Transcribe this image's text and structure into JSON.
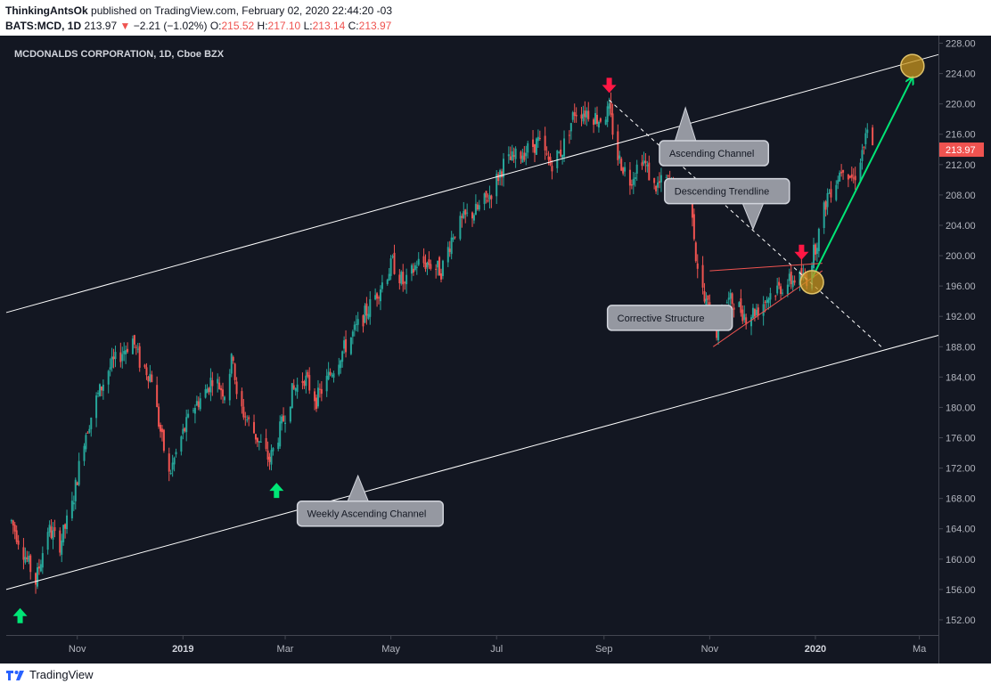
{
  "header": {
    "author": "ThinkingAntsOk",
    "published_text": "published on TradingView.com, February 02, 2020 22:44:20 -03",
    "symbol": "BATS:MCD, 1D",
    "last": "213.97",
    "change_arrow": "▼",
    "change": "−2.21 (−1.02%)",
    "o_label": "O:",
    "o_value": "215.52",
    "h_label": "H:",
    "h_value": "217.10",
    "l_label": "L:",
    "l_value": "213.14",
    "c_label": "C:",
    "c_value": "213.97"
  },
  "chart_data": {
    "type": "candlestick",
    "title": "MCDONALDS CORPORATION, 1D, Cboe BZX",
    "ylim": [
      150,
      229
    ],
    "y_ticks": [
      "228.00",
      "224.00",
      "220.00",
      "216.00",
      "212.00",
      "208.00",
      "204.00",
      "200.00",
      "196.00",
      "192.00",
      "188.00",
      "184.00",
      "180.00",
      "176.00",
      "172.00",
      "168.00",
      "164.00",
      "160.00",
      "156.00",
      "152.00"
    ],
    "x_ticks": [
      {
        "label": "Nov",
        "date": "2018-11-01"
      },
      {
        "label": "2019",
        "date": "2019-01-01",
        "bold": true
      },
      {
        "label": "Mar",
        "date": "2019-03-01"
      },
      {
        "label": "May",
        "date": "2019-05-01"
      },
      {
        "label": "Jul",
        "date": "2019-07-01"
      },
      {
        "label": "Sep",
        "date": "2019-09-01"
      },
      {
        "label": "Nov",
        "date": "2019-11-01"
      },
      {
        "label": "2020",
        "date": "2020-01-01",
        "bold": true
      },
      {
        "label": "Ma",
        "date": "2020-03-01"
      }
    ],
    "price_path": [
      [
        "2018-09-24",
        165
      ],
      [
        "2018-10-08",
        157
      ],
      [
        "2018-10-15",
        164
      ],
      [
        "2018-10-22",
        162
      ],
      [
        "2018-10-29",
        167
      ],
      [
        "2018-11-05",
        176
      ],
      [
        "2018-11-12",
        181
      ],
      [
        "2018-11-19",
        185
      ],
      [
        "2018-11-26",
        187
      ],
      [
        "2018-12-03",
        189
      ],
      [
        "2018-12-07",
        186
      ],
      [
        "2018-12-14",
        184
      ],
      [
        "2018-12-18",
        178
      ],
      [
        "2018-12-24",
        171
      ],
      [
        "2018-12-31",
        176
      ],
      [
        "2019-01-07",
        180
      ],
      [
        "2019-01-14",
        182
      ],
      [
        "2019-01-18",
        184
      ],
      [
        "2019-01-25",
        182
      ],
      [
        "2019-01-30",
        187
      ],
      [
        "2019-02-01",
        181
      ],
      [
        "2019-02-08",
        178
      ],
      [
        "2019-02-15",
        175
      ],
      [
        "2019-02-20",
        173
      ],
      [
        "2019-02-26",
        177
      ],
      [
        "2019-03-05",
        182
      ],
      [
        "2019-03-12",
        184
      ],
      [
        "2019-03-19",
        181
      ],
      [
        "2019-03-26",
        184
      ],
      [
        "2019-04-02",
        187
      ],
      [
        "2019-04-10",
        190
      ],
      [
        "2019-04-18",
        193
      ],
      [
        "2019-04-25",
        196
      ],
      [
        "2019-05-02",
        199
      ],
      [
        "2019-05-09",
        196
      ],
      [
        "2019-05-16",
        199
      ],
      [
        "2019-05-23",
        199
      ],
      [
        "2019-05-30",
        198
      ],
      [
        "2019-06-06",
        203
      ],
      [
        "2019-06-13",
        205
      ],
      [
        "2019-06-20",
        206
      ],
      [
        "2019-06-27",
        208
      ],
      [
        "2019-07-05",
        212
      ],
      [
        "2019-07-12",
        213
      ],
      [
        "2019-07-19",
        214
      ],
      [
        "2019-07-25",
        215
      ],
      [
        "2019-08-01",
        212
      ],
      [
        "2019-08-08",
        214
      ],
      [
        "2019-08-15",
        219
      ],
      [
        "2019-08-22",
        219
      ],
      [
        "2019-08-29",
        218
      ],
      [
        "2019-09-04",
        219
      ],
      [
        "2019-09-09",
        213
      ],
      [
        "2019-09-16",
        210
      ],
      [
        "2019-09-23",
        213
      ],
      [
        "2019-09-30",
        209
      ],
      [
        "2019-10-07",
        210
      ],
      [
        "2019-10-14",
        208
      ],
      [
        "2019-10-21",
        209
      ],
      [
        "2019-10-24",
        200
      ],
      [
        "2019-10-29",
        194
      ],
      [
        "2019-11-01",
        193
      ],
      [
        "2019-11-05",
        190
      ],
      [
        "2019-11-08",
        194
      ],
      [
        "2019-11-15",
        194
      ],
      [
        "2019-11-22",
        192
      ],
      [
        "2019-11-29",
        193
      ],
      [
        "2019-12-06",
        195
      ],
      [
        "2019-12-13",
        196
      ],
      [
        "2019-12-20",
        197
      ],
      [
        "2019-12-27",
        197
      ],
      [
        "2020-01-03",
        203
      ],
      [
        "2020-01-08",
        208
      ],
      [
        "2020-01-13",
        210
      ],
      [
        "2020-01-17",
        212
      ],
      [
        "2020-01-23",
        210
      ],
      [
        "2020-01-27",
        213
      ],
      [
        "2020-01-31",
        216
      ],
      [
        "2020-02-03",
        214
      ]
    ],
    "last_price": "213.97",
    "annotations": [
      {
        "type": "line",
        "name": "weekly-channel-upper",
        "from": [
          "2018-09-21",
          192.5
        ],
        "to": [
          "2020-03-12",
          226.5
        ],
        "color": "#ffffff"
      },
      {
        "type": "line",
        "name": "weekly-channel-lower",
        "from": [
          "2018-09-21",
          156
        ],
        "to": [
          "2020-03-12",
          189.5
        ],
        "color": "#ffffff"
      },
      {
        "type": "line",
        "name": "descending-trendline",
        "from": [
          "2019-09-04",
          220.5
        ],
        "to": [
          "2020-02-08",
          188
        ],
        "color": "#ffffff",
        "dashed": true
      },
      {
        "type": "line",
        "name": "corrective-top",
        "from": [
          "2019-11-01",
          198
        ],
        "to": [
          "2020-01-05",
          199
        ],
        "color": "#ef5350"
      },
      {
        "type": "line",
        "name": "corrective-bottom",
        "from": [
          "2019-11-03",
          188
        ],
        "to": [
          "2020-01-05",
          198
        ],
        "color": "#ef5350"
      },
      {
        "type": "arrow",
        "name": "target-arrow",
        "from": [
          "2019-12-30",
          197
        ],
        "to": [
          "2020-02-26",
          223.5
        ],
        "color": "#4caf50"
      }
    ],
    "callouts": [
      {
        "text": "Ascending Channel",
        "anchor": [
          "2019-10-18",
          219.5
        ],
        "box": [
          "2019-10-03",
          213.5
        ]
      },
      {
        "text": "Descending Trendline",
        "anchor": [
          "2019-11-26",
          203.5
        ],
        "box": [
          "2019-10-06",
          208.5
        ]
      },
      {
        "text": "Corrective Structure",
        "anchor": [
          "2019-11-07",
          192
        ],
        "box": [
          "2019-09-03",
          191.8
        ]
      },
      {
        "text": "Weekly Ascending Channel",
        "anchor": [
          "2019-04-12",
          171
        ],
        "box": [
          "2019-03-08",
          166
        ]
      }
    ],
    "markers": [
      {
        "type": "arrow-up",
        "name": "low-up-arrow-1",
        "at": [
          "2018-09-29",
          152.5
        ],
        "color": "#00e676"
      },
      {
        "type": "arrow-up",
        "name": "low-up-arrow-2",
        "at": [
          "2019-02-24",
          169
        ],
        "color": "#00e676"
      },
      {
        "type": "arrow-down",
        "name": "top-down-arrow-1",
        "at": [
          "2019-09-04",
          222.5
        ],
        "color": "#ff1744"
      },
      {
        "type": "arrow-down",
        "name": "top-down-arrow-2",
        "at": [
          "2019-12-24",
          200.5
        ],
        "color": "#ff1744"
      },
      {
        "type": "circle",
        "name": "breakout-circle",
        "at": [
          "2019-12-30",
          196.5
        ],
        "color": "#c8961e"
      },
      {
        "type": "circle",
        "name": "target-circle",
        "at": [
          "2020-02-26",
          225
        ],
        "color": "#c8961e"
      }
    ],
    "colors": {
      "up": "#26a69a",
      "down": "#ef5350",
      "background": "#131722",
      "grid": "#363c4e",
      "text": "#b2b5be"
    }
  },
  "footer": {
    "brand": "TradingView"
  }
}
